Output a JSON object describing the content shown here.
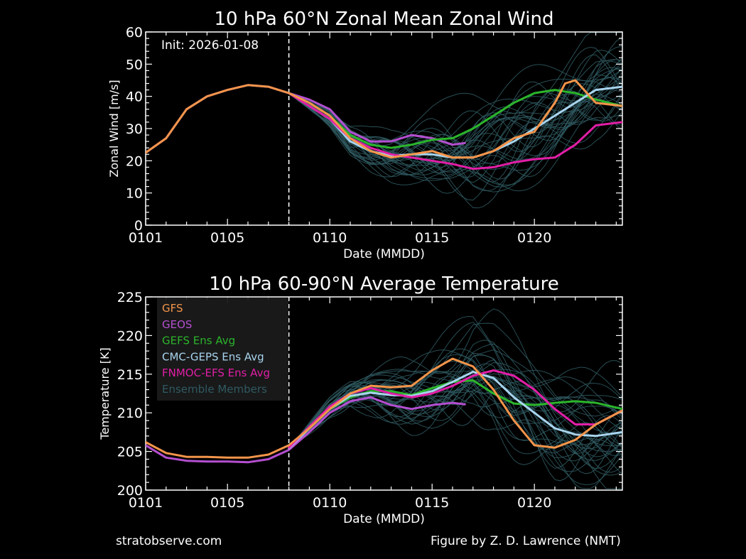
{
  "colors": {
    "GFS": "#f4954a",
    "GEOS": "#b44fd0",
    "GEFS Ens Avg": "#2bb52b",
    "CMC-GEPS Ens Avg": "#a8d4ee",
    "FNMOC-EFS Ens Avg": "#e11ea6",
    "Ensemble Members": "#2f5a62"
  },
  "footer": {
    "left": "stratobserve.com",
    "right": "Figure by Z. D. Lawrence (NMT)"
  },
  "chart_data": [
    {
      "type": "line",
      "title": "10 hPa  60°N   Zonal Mean Zonal Wind",
      "xlabel": "Date (MMDD)",
      "ylabel": "Zonal  Wind  [m/s]",
      "xticklabels": [
        "0101",
        "0105",
        "0110",
        "0115",
        "0120"
      ],
      "xticks_day": [
        1,
        5,
        10,
        15,
        20
      ],
      "xlim_day": [
        1,
        24.3
      ],
      "ylim": [
        0,
        60
      ],
      "yticks": [
        0,
        10,
        20,
        30,
        40,
        50,
        60
      ],
      "annotation": "Init: 2026-01-08",
      "init_day": 8,
      "grid": false,
      "series": [
        {
          "name": "GFS",
          "day": [
            1,
            2,
            3,
            4,
            5,
            6,
            7,
            8,
            9,
            10,
            11,
            12,
            13,
            14,
            15,
            16,
            17,
            18,
            19,
            20,
            21,
            21.5,
            22,
            23,
            24.3
          ],
          "values": [
            22.5,
            27,
            36,
            40,
            42,
            43.5,
            43,
            41,
            38,
            34,
            27,
            23,
            21,
            22,
            23,
            21,
            21,
            23,
            27,
            29,
            38,
            44,
            45,
            38,
            37
          ]
        },
        {
          "name": "GEOS",
          "day": [
            1,
            2,
            3,
            4,
            5,
            6,
            7,
            8,
            9,
            10,
            11,
            12,
            13,
            14,
            15,
            16,
            16.6
          ],
          "values": [
            22.5,
            27,
            36,
            40,
            42,
            43.5,
            43,
            41,
            39,
            36,
            29,
            26,
            26,
            28,
            27,
            25,
            25.5
          ]
        },
        {
          "name": "GEFS Ens Avg",
          "day": [
            8,
            9,
            10,
            11,
            12,
            13,
            14,
            15,
            16,
            17,
            18,
            19,
            20,
            21,
            22,
            23,
            24.3
          ],
          "values": [
            41,
            38,
            34,
            28,
            25,
            24,
            25,
            26.5,
            27,
            30,
            34,
            38,
            41,
            42,
            41,
            39,
            37
          ]
        },
        {
          "name": "CMC-GEPS Ens Avg",
          "day": [
            8,
            9,
            10,
            11,
            12,
            13,
            14,
            15,
            16,
            17,
            18,
            19,
            20,
            21,
            22,
            23,
            24.3
          ],
          "values": [
            41,
            37,
            33,
            26,
            23,
            21.5,
            22,
            22,
            21,
            21,
            23,
            26,
            30,
            34,
            38,
            42,
            43
          ]
        },
        {
          "name": "FNMOC-EFS Ens Avg",
          "day": [
            8,
            9,
            10,
            11,
            12,
            13,
            14,
            15,
            16,
            17,
            18,
            19,
            20,
            21,
            22,
            23,
            24.3
          ],
          "values": [
            41,
            37,
            33,
            27,
            24,
            22,
            21,
            20,
            19,
            17.5,
            18,
            19.5,
            20.5,
            21,
            25,
            31,
            32
          ]
        }
      ]
    },
    {
      "type": "line",
      "title": "10 hPa  60-90°N Average Temperature",
      "xlabel": "Date (MMDD)",
      "ylabel": "Temperature  [K]",
      "xticklabels": [
        "0101",
        "0105",
        "0110",
        "0115",
        "0120"
      ],
      "xticks_day": [
        1,
        5,
        10,
        15,
        20
      ],
      "xlim_day": [
        1,
        24.3
      ],
      "ylim": [
        200,
        225
      ],
      "yticks": [
        200,
        205,
        210,
        215,
        220,
        225
      ],
      "init_day": 8,
      "grid": false,
      "legend_placement": "top-left",
      "legend": [
        "GFS",
        "GEOS",
        "GEFS Ens Avg",
        "CMC-GEPS Ens Avg",
        "FNMOC-EFS Ens Avg",
        "Ensemble Members"
      ],
      "series": [
        {
          "name": "GFS",
          "day": [
            1,
            2,
            3,
            4,
            5,
            6,
            7,
            8,
            9,
            10,
            11,
            12,
            13,
            14,
            15,
            16,
            17,
            18,
            19,
            20,
            21,
            22,
            23,
            24.3
          ],
          "values": [
            206.2,
            204.8,
            204.3,
            204.3,
            204.2,
            204.2,
            204.6,
            205.8,
            208,
            210.5,
            212.5,
            213.5,
            213.3,
            213.5,
            215.5,
            217,
            216,
            213,
            209,
            205.8,
            205.5,
            206.5,
            208.5,
            210.3
          ]
        },
        {
          "name": "GEOS",
          "day": [
            1,
            2,
            3,
            4,
            5,
            6,
            7,
            8,
            9,
            10,
            11,
            12,
            13,
            14,
            15,
            16,
            16.6
          ],
          "values": [
            205.8,
            204.2,
            203.8,
            203.7,
            203.7,
            203.6,
            204,
            205.2,
            207.5,
            210,
            211.5,
            212,
            211,
            210.5,
            211,
            211.3,
            211.1
          ]
        },
        {
          "name": "GEFS Ens Avg",
          "day": [
            8,
            9,
            10,
            11,
            12,
            13,
            14,
            15,
            16,
            17,
            18,
            19,
            20,
            21,
            22,
            23,
            24.3
          ],
          "values": [
            205.6,
            208,
            210.5,
            212,
            212.8,
            212.8,
            212.3,
            213.2,
            214,
            214.2,
            212.5,
            211.2,
            211,
            211.3,
            211.5,
            211.3,
            210.5
          ]
        },
        {
          "name": "CMC-GEPS Ens Avg",
          "day": [
            8,
            9,
            10,
            11,
            12,
            13,
            14,
            15,
            16,
            17,
            18,
            19,
            20,
            21,
            22,
            23,
            24.3
          ],
          "values": [
            205.4,
            208,
            210.5,
            212.2,
            212.6,
            212.3,
            212.2,
            212.8,
            214,
            215.3,
            214.5,
            212,
            210,
            208,
            207.2,
            207,
            207.5
          ]
        },
        {
          "name": "FNMOC-EFS Ens Avg",
          "day": [
            8,
            9,
            10,
            11,
            12,
            13,
            14,
            15,
            16,
            17,
            18,
            19,
            20,
            21,
            22,
            23,
            24.3
          ],
          "values": [
            205.5,
            208.2,
            210.8,
            212.5,
            213.2,
            212.5,
            212,
            212.5,
            213.5,
            214.8,
            215.5,
            214.8,
            213,
            210.5,
            208.5,
            208.5,
            210.3
          ]
        }
      ]
    }
  ]
}
